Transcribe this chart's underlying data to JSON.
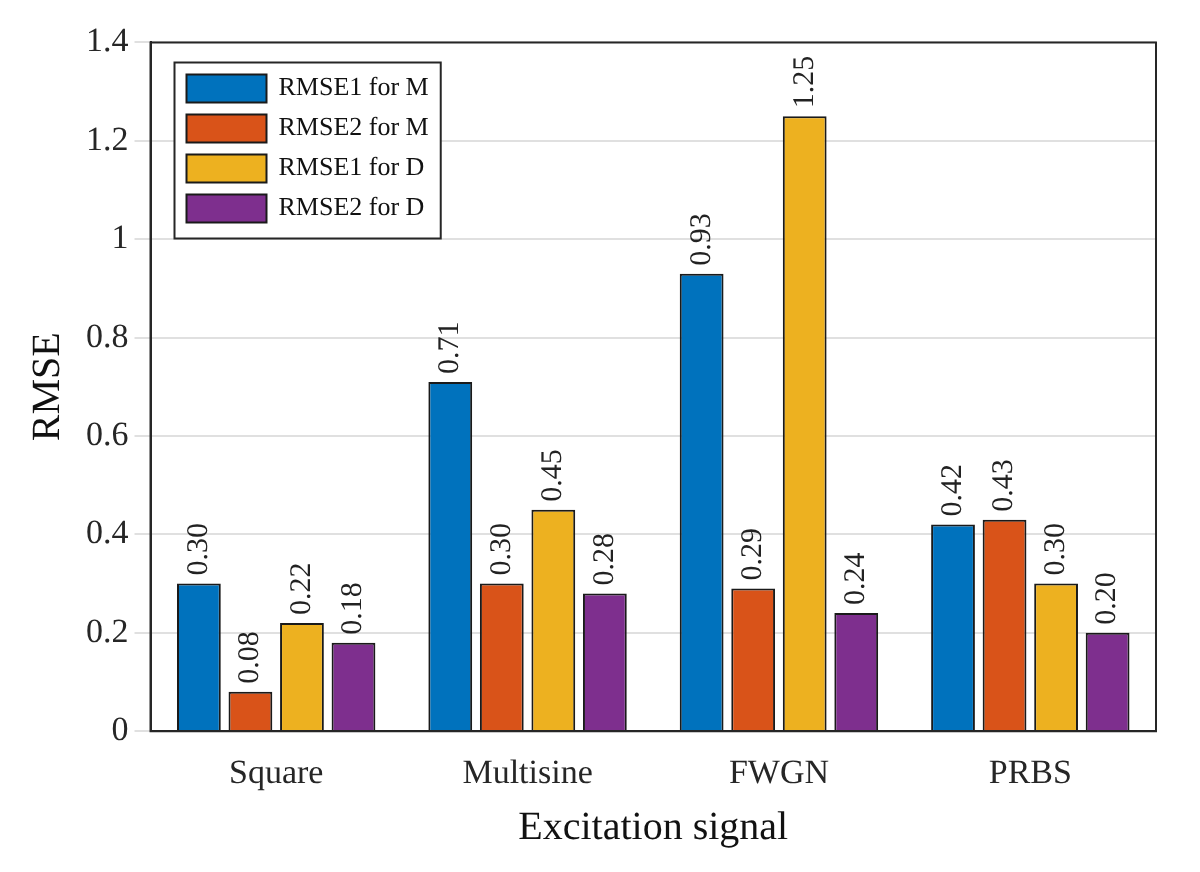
{
  "chart_data": {
    "type": "bar",
    "xlabel": "Excitation signal",
    "ylabel": "RMSE",
    "categories": [
      "Square",
      "Multisine",
      "FWGN",
      "PRBS"
    ],
    "series": [
      {
        "name": "RMSE1 for M",
        "color": "#0072bd",
        "values": [
          0.3,
          0.71,
          0.93,
          0.42
        ],
        "value_labels": [
          "0.30",
          "0.71",
          "0.93",
          "0.42"
        ]
      },
      {
        "name": "RMSE2 for M",
        "color": "#d95319",
        "values": [
          0.08,
          0.3,
          0.29,
          0.43
        ],
        "value_labels": [
          "0.08",
          "0.30",
          "0.29",
          "0.43"
        ]
      },
      {
        "name": "RMSE1 for D",
        "color": "#edb120",
        "values": [
          0.22,
          0.45,
          1.25,
          0.3
        ],
        "value_labels": [
          "0.22",
          "0.45",
          "1.25",
          "0.30"
        ]
      },
      {
        "name": "RMSE2 for D",
        "color": "#7e2f8e",
        "values": [
          0.18,
          0.28,
          0.24,
          0.2
        ],
        "value_labels": [
          "0.18",
          "0.28",
          "0.24",
          "0.20"
        ]
      }
    ],
    "ylim": [
      0,
      1.4
    ],
    "yticks": [
      0,
      0.2,
      0.4,
      0.6,
      0.8,
      1,
      1.2,
      1.4
    ],
    "grid": "y",
    "legend": "top left"
  }
}
